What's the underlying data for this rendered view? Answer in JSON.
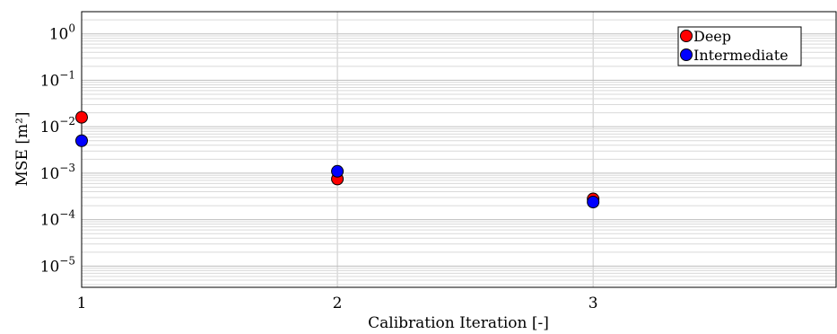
{
  "chart_data": {
    "type": "scatter",
    "xlabel": "Calibration Iteration [-]",
    "ylabel": "MSE [m²]",
    "xlim": [
      1,
      3.95
    ],
    "ylim": [
      3.5e-06,
      3.0
    ],
    "yscale": "log",
    "x_ticks": [
      1,
      2,
      3
    ],
    "x_tick_labels": [
      "1",
      "2",
      "3"
    ],
    "y_ticks": [
      1e-05,
      0.0001,
      0.001,
      0.01,
      0.1,
      1.0
    ],
    "y_tick_labels": [
      {
        "base": "10",
        "exp": "−5"
      },
      {
        "base": "10",
        "exp": "−4"
      },
      {
        "base": "10",
        "exp": "−3"
      },
      {
        "base": "10",
        "exp": "−2"
      },
      {
        "base": "10",
        "exp": "−1"
      },
      {
        "base": "10",
        "exp": "0"
      }
    ],
    "grid": true,
    "legend_position": "top-right",
    "series": [
      {
        "name": "Deep",
        "color": "#ff0000",
        "x": [
          1,
          2,
          3
        ],
        "y": [
          0.016,
          0.00075,
          0.00028
        ]
      },
      {
        "name": "Intermediate",
        "color": "#0000ff",
        "x": [
          1,
          2,
          3
        ],
        "y": [
          0.005,
          0.0011,
          0.00024
        ]
      }
    ]
  }
}
